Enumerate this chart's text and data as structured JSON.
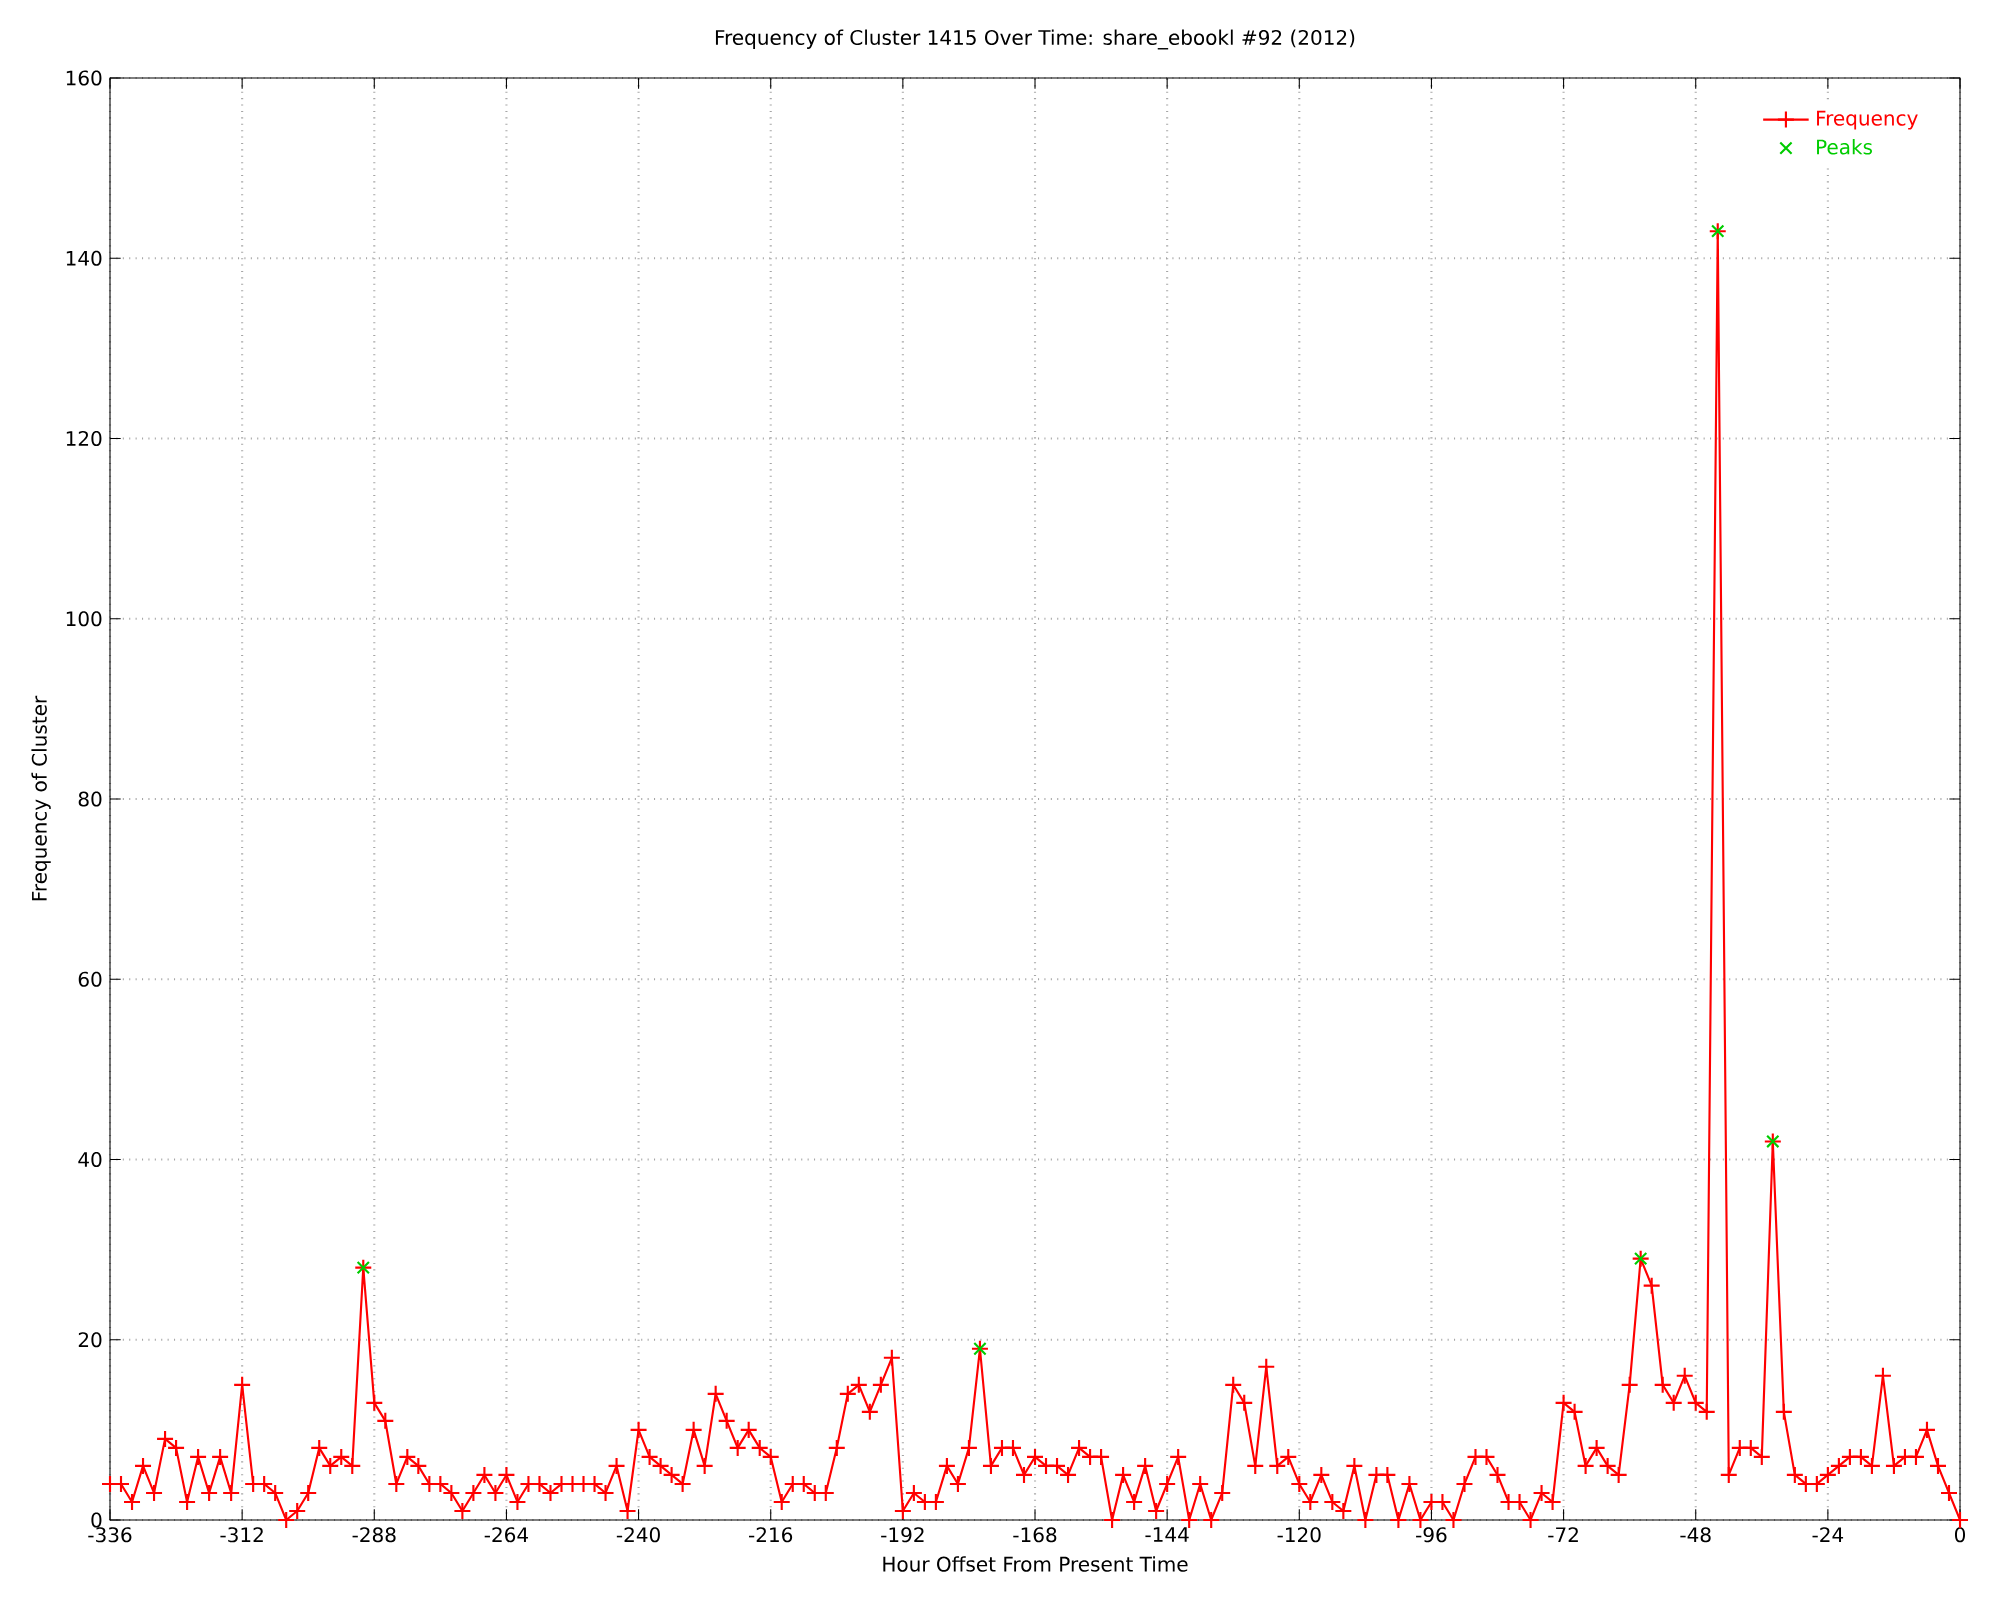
{
  "chart_data": {
    "type": "line",
    "title": "Frequency of Cluster 1415 Over Time: share_ebookl #92 (2012)",
    "xlabel": "Hour Offset From Present Time",
    "ylabel": "Frequency of Cluster",
    "xlim": [
      -336,
      0
    ],
    "ylim": [
      0,
      160
    ],
    "xticks": [
      -336,
      -312,
      -288,
      -264,
      -240,
      -216,
      -192,
      -168,
      -144,
      -120,
      -96,
      -72,
      -48,
      -24,
      0
    ],
    "yticks": [
      0,
      20,
      40,
      60,
      80,
      100,
      120,
      140,
      160
    ],
    "grid": true,
    "legend": "top right",
    "marker": "cross",
    "series": [
      {
        "name": "Frequency",
        "color": "#ff0000",
        "x": [
          -336,
          -334,
          -332,
          -330,
          -328,
          -326,
          -324,
          -322,
          -320,
          -318,
          -316,
          -314,
          -312,
          -310,
          -308,
          -306,
          -304,
          -302,
          -300,
          -298,
          -296,
          -294,
          -292,
          -290,
          -288,
          -286,
          -284,
          -282,
          -280,
          -278,
          -276,
          -274,
          -272,
          -270,
          -268,
          -266,
          -264,
          -262,
          -260,
          -258,
          -256,
          -254,
          -252,
          -250,
          -248,
          -246,
          -244,
          -242,
          -240,
          -238,
          -236,
          -234,
          -232,
          -230,
          -228,
          -226,
          -224,
          -222,
          -220,
          -218,
          -216,
          -214,
          -212,
          -210,
          -208,
          -206,
          -204,
          -202,
          -200,
          -198,
          -196,
          -194,
          -192,
          -190,
          -188,
          -186,
          -184,
          -182,
          -180,
          -178,
          -176,
          -174,
          -172,
          -170,
          -168,
          -166,
          -164,
          -162,
          -160,
          -158,
          -156,
          -154,
          -152,
          -150,
          -148,
          -146,
          -144,
          -142,
          -140,
          -138,
          -136,
          -134,
          -132,
          -130,
          -128,
          -126,
          -124,
          -122,
          -120,
          -118,
          -116,
          -114,
          -112,
          -110,
          -108,
          -106,
          -104,
          -102,
          -100,
          -98,
          -96,
          -94,
          -92,
          -90,
          -88,
          -86,
          -84,
          -82,
          -80,
          -78,
          -76,
          -74,
          -72,
          -70,
          -68,
          -66,
          -64,
          -62,
          -60,
          -58,
          -56,
          -54,
          -52,
          -50,
          -48,
          -46,
          -44,
          -42,
          -40,
          -38,
          -36,
          -34,
          -32,
          -30,
          -28,
          -26,
          -24,
          -22,
          -20,
          -18,
          -16,
          -14,
          -12,
          -10,
          -8,
          -6,
          -4,
          -2,
          0
        ],
        "values": [
          4,
          4,
          2,
          6,
          3,
          9,
          8,
          2,
          7,
          3,
          7,
          3,
          15,
          4,
          4,
          3,
          0,
          1,
          3,
          8,
          6,
          7,
          6,
          28,
          13,
          11,
          4,
          7,
          6,
          4,
          4,
          3,
          1,
          3,
          5,
          3,
          5,
          2,
          4,
          4,
          3,
          4,
          4,
          4,
          4,
          3,
          6,
          1,
          10,
          7,
          6,
          5,
          4,
          10,
          6,
          14,
          11,
          8,
          10,
          8,
          7,
          2,
          4,
          4,
          3,
          3,
          8,
          14,
          15,
          12,
          15,
          18,
          1,
          3,
          2,
          2,
          6,
          4,
          8,
          19,
          6,
          8,
          8,
          5,
          7,
          6,
          6,
          5,
          8,
          7,
          7,
          0,
          5,
          2,
          6,
          1,
          4,
          7,
          0,
          4,
          0,
          3,
          15,
          13,
          6,
          17,
          6,
          7,
          4,
          2,
          5,
          2,
          1,
          6,
          0,
          5,
          5,
          0,
          4,
          0,
          2,
          2,
          0,
          4,
          7,
          7,
          5,
          2,
          2,
          0,
          3,
          2,
          13,
          12,
          6,
          8,
          6,
          5,
          15,
          29,
          26,
          15,
          13,
          16,
          13,
          12,
          143,
          5,
          8,
          8,
          7,
          42,
          12,
          5,
          4,
          4,
          5,
          6,
          7,
          7,
          6,
          16,
          6,
          7,
          7,
          10,
          6,
          3,
          0
        ]
      },
      {
        "name": "Peaks",
        "type": "scatter",
        "color": "#00cc00",
        "x": [
          -290,
          -178,
          -58,
          -44,
          -34
        ],
        "values": [
          28,
          19,
          29,
          143,
          42
        ]
      }
    ]
  }
}
